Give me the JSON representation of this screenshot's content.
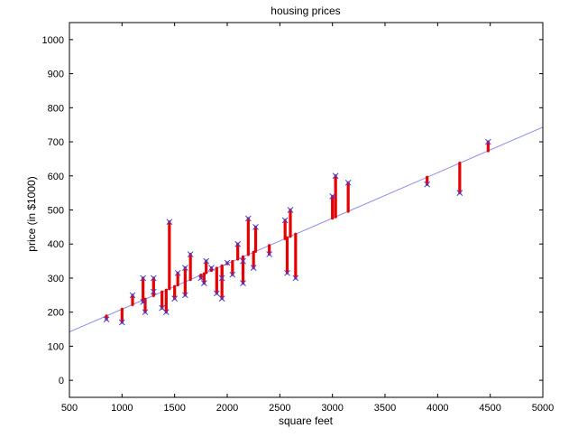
{
  "chart_data": {
    "type": "scatter",
    "title": "housing prices",
    "xlabel": "square feet",
    "ylabel": "price (in $1000)",
    "xlim": [
      500,
      5000
    ],
    "ylim": [
      -50,
      1050
    ],
    "x_ticks": [
      500,
      1000,
      1500,
      2000,
      2500,
      3000,
      3500,
      4000,
      4500,
      5000
    ],
    "y_ticks": [
      0,
      100,
      200,
      300,
      400,
      500,
      600,
      700,
      800,
      900,
      1000
    ],
    "grid": false,
    "legend": "none",
    "colors": {
      "points": "#3f3fd9",
      "fit_line": "#8b8bef",
      "residuals": "#e60000"
    },
    "series": [
      {
        "type": "scatter",
        "marker": "x",
        "points": [
          [
            852,
            179
          ],
          [
            1000,
            170
          ],
          [
            1100,
            250
          ],
          [
            1200,
            300
          ],
          [
            1200,
            230
          ],
          [
            1220,
            200
          ],
          [
            1300,
            300
          ],
          [
            1300,
            260
          ],
          [
            1380,
            212
          ],
          [
            1420,
            200
          ],
          [
            1450,
            465
          ],
          [
            1500,
            240
          ],
          [
            1530,
            315
          ],
          [
            1600,
            330
          ],
          [
            1600,
            250
          ],
          [
            1650,
            370
          ],
          [
            1750,
            300
          ],
          [
            1780,
            285
          ],
          [
            1800,
            350
          ],
          [
            1850,
            330
          ],
          [
            1900,
            255
          ],
          [
            1950,
            240
          ],
          [
            1950,
            300
          ],
          [
            2000,
            345
          ],
          [
            2050,
            310
          ],
          [
            2100,
            400
          ],
          [
            2150,
            350
          ],
          [
            2150,
            285
          ],
          [
            2200,
            475
          ],
          [
            2250,
            330
          ],
          [
            2270,
            450
          ],
          [
            2400,
            370
          ],
          [
            2550,
            470
          ],
          [
            2570,
            315
          ],
          [
            2600,
            500
          ],
          [
            2650,
            300
          ],
          [
            3000,
            540
          ],
          [
            3030,
            600
          ],
          [
            3150,
            580
          ],
          [
            3900,
            575
          ],
          [
            4210,
            550
          ],
          [
            4480,
            700
          ]
        ]
      },
      {
        "type": "line",
        "x": [
          500,
          5000
        ],
        "y": [
          142,
          743
        ]
      }
    ]
  }
}
